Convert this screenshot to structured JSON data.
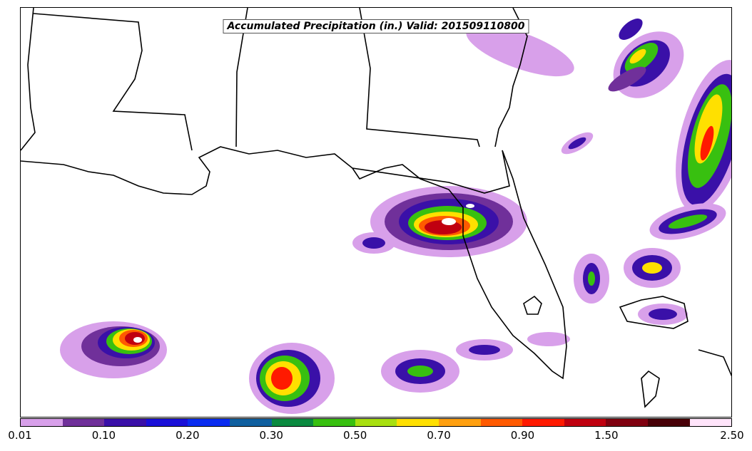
{
  "title": "Accumulated Precipitation (in.) Valid: 201509110800",
  "colorbar": {
    "colors": [
      "#d8a0ea",
      "#70309a",
      "#3a10a8",
      "#1a10d8",
      "#0a2cf0",
      "#1060a0",
      "#0a8a40",
      "#38c010",
      "#a8e010",
      "#ffe000",
      "#ffa010",
      "#ff5a00",
      "#ff1a00",
      "#c00010",
      "#800010",
      "#480008",
      "#ffe4fa"
    ],
    "tick_labels": [
      "0.01",
      "0.10",
      "0.20",
      "0.30",
      "0.50",
      "0.70",
      "0.90",
      "1.50",
      "2.50"
    ]
  }
}
